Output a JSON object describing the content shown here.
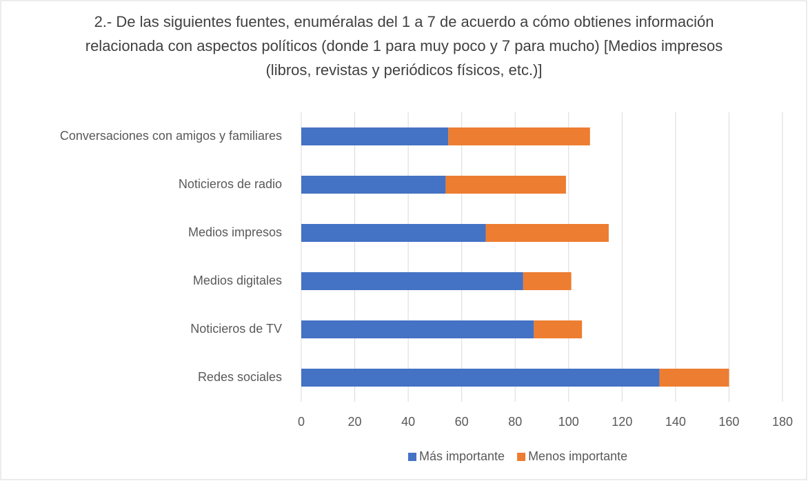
{
  "chart_data": {
    "type": "stacked_barh",
    "title": "2.- De las siguientes fuentes, enuméralas del 1 a 7 de acuerdo a cómo obtienes información relacionada con aspectos políticos (donde 1 para muy poco y 7 para mucho) [Medios impresos (libros, revistas y periódicos físicos, etc.)]",
    "categories": [
      "Conversaciones con amigos y familiares",
      "Noticieros de radio",
      "Medios impresos",
      "Medios digitales",
      "Noticieros de TV",
      "Redes sociales"
    ],
    "series": [
      {
        "name": "Más importante",
        "color": "#4472c4",
        "values": [
          55,
          54,
          69,
          83,
          87,
          134
        ]
      },
      {
        "name": "Menos importante",
        "color": "#ed7d31",
        "values": [
          53,
          45,
          46,
          18,
          18,
          26
        ]
      }
    ],
    "xlim": [
      0,
      180
    ],
    "xticks": [
      0,
      20,
      40,
      60,
      80,
      100,
      120,
      140,
      160,
      180
    ],
    "grid": true,
    "legend": "bottom"
  }
}
